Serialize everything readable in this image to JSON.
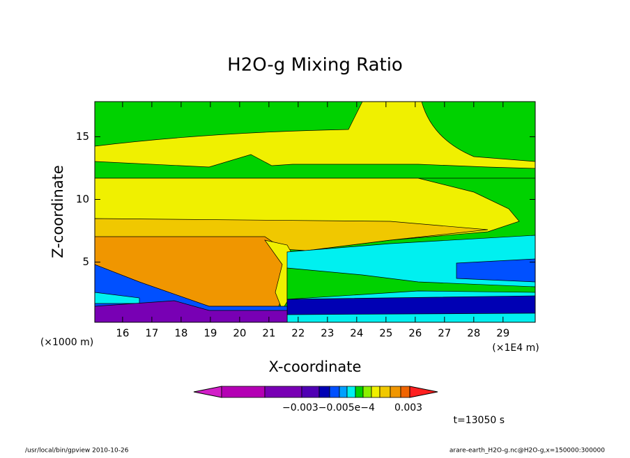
{
  "chart_data": {
    "type": "contour",
    "title": "H2O-g Mixing Ratio",
    "x_label": "X-coordinate",
    "y_label": "Z-coordinate",
    "x_unit_label": "(×1E4 m)",
    "y_unit_label": "(×1000 m)",
    "xlim": [
      15.05,
      30.1
    ],
    "xticks": [
      16,
      17,
      18,
      19,
      20,
      21,
      22,
      23,
      24,
      25,
      26,
      27,
      28,
      29
    ],
    "ylim": [
      0.2,
      17.8
    ],
    "yticks": [
      5,
      10,
      15
    ],
    "colorbar_colors": [
      "#d21ec8",
      "#b400b4",
      "#7800b4",
      "#5000b4",
      "#0000b4",
      "#0050ff",
      "#00a0ff",
      "#00f0f0",
      "#00d200",
      "#8cf000",
      "#f0f000",
      "#f0c800",
      "#f09600",
      "#f06400",
      "#ff2020"
    ],
    "colorbar_labels": [
      "−0.003−0.005e−4",
      "0.003"
    ],
    "time_label": "t=13050 s",
    "footer_left": "/usr/local/bin/gpview   2010-10-26",
    "footer_right": "arare-earth_H2O-g.nc@H2O-g,x=150000:300000"
  }
}
